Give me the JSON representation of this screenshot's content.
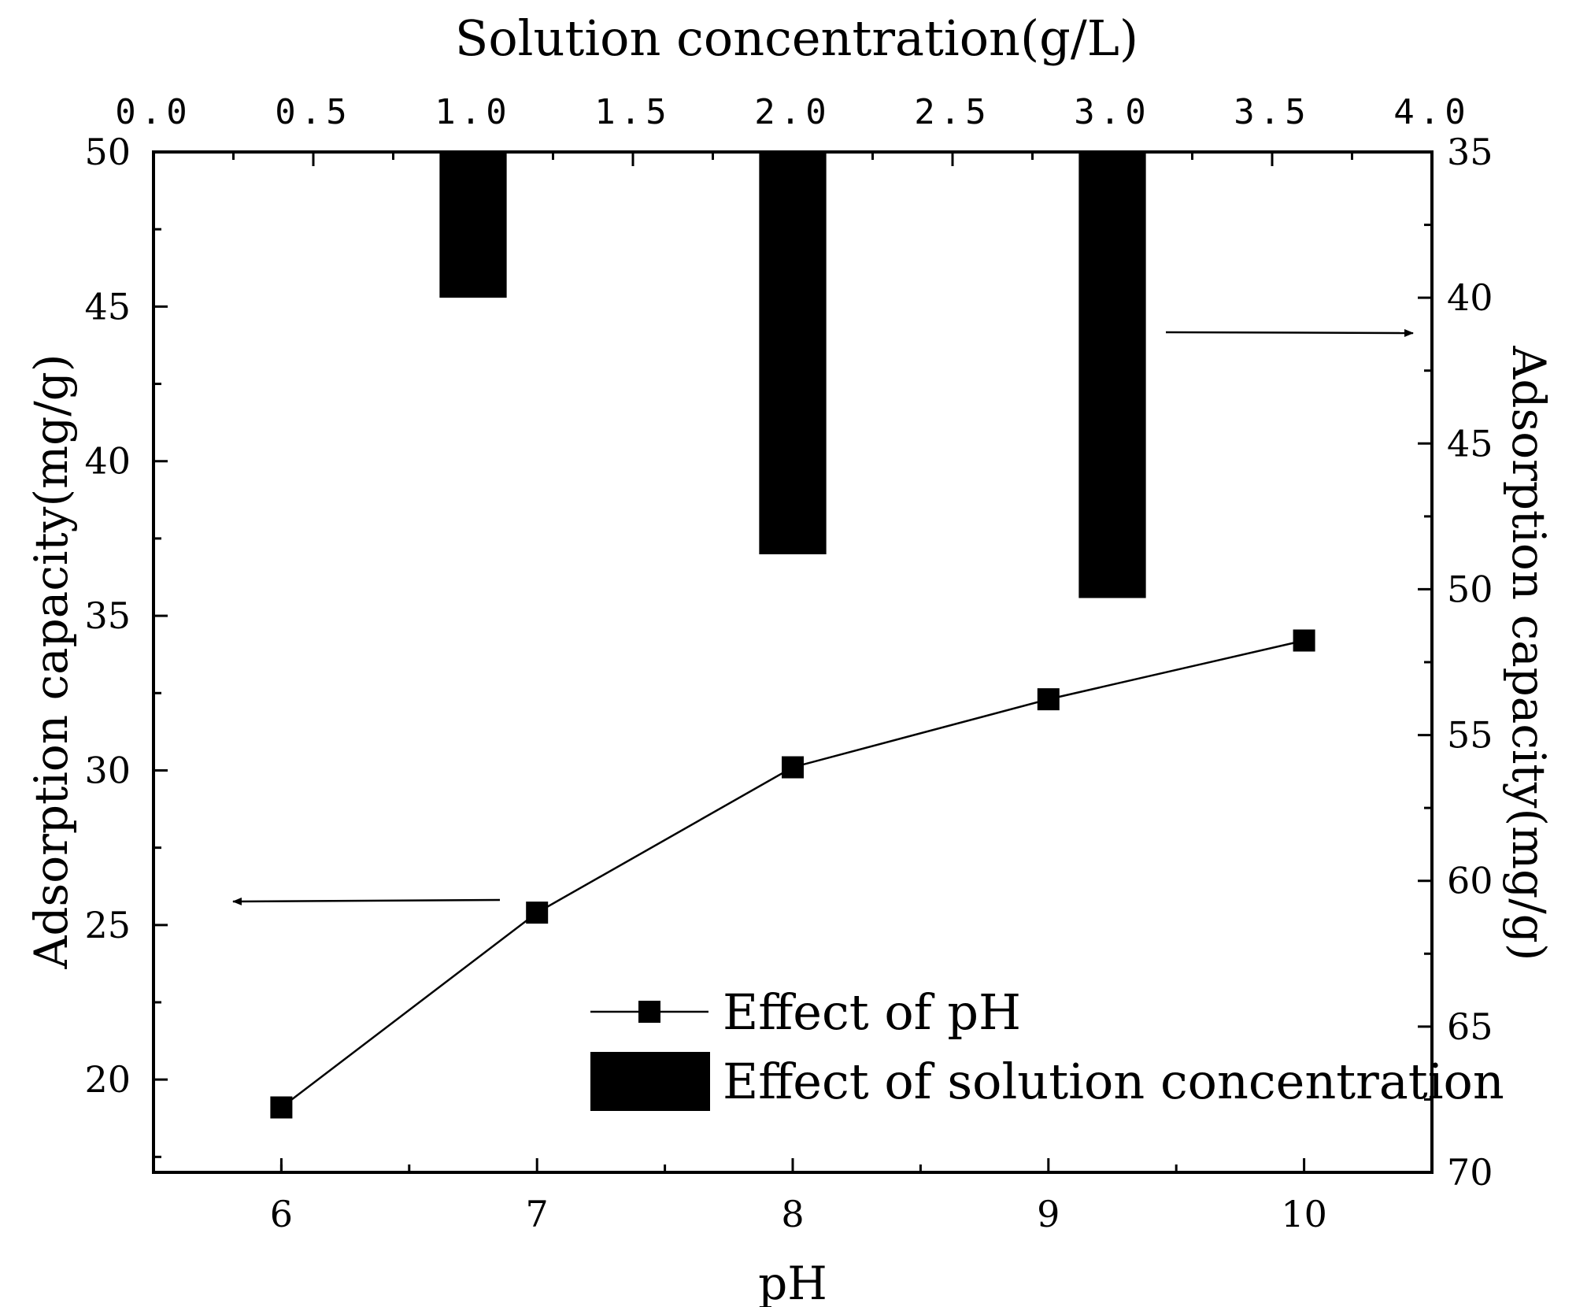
{
  "chart_data": {
    "type": "bar+line",
    "title": "Solution concentration(g/L)",
    "top_axis": {
      "label": "Solution concentration(g/L)",
      "range": [
        0.0,
        4.0
      ],
      "ticks": [
        "0.0",
        "0.5",
        "1.0",
        "1.5",
        "2.0",
        "2.5",
        "3.0",
        "3.5",
        "4.0"
      ]
    },
    "bottom_axis": {
      "label": "pH",
      "range": [
        5.5,
        10.5
      ],
      "ticks": [
        "6",
        "7",
        "8",
        "9",
        "10"
      ]
    },
    "left_axis": {
      "label": "Adsorption capacity(mg/g)",
      "range": [
        17.0,
        50.0
      ],
      "ticks": [
        "20",
        "25",
        "30",
        "35",
        "40",
        "45",
        "50"
      ]
    },
    "right_axis": {
      "label": "Adsorption capacity(mg/g)",
      "range": [
        35,
        70
      ],
      "inverted": true,
      "ticks": [
        "35",
        "40",
        "45",
        "50",
        "55",
        "60",
        "65",
        "70"
      ]
    },
    "series": [
      {
        "name": "Effect of pH",
        "kind": "line",
        "marker": "square",
        "axis": "bottom-left",
        "x": [
          6,
          7,
          8,
          9,
          10
        ],
        "y": [
          19.1,
          25.4,
          30.1,
          32.3,
          34.2
        ]
      },
      {
        "name": "Effect of solution concentration",
        "kind": "bar",
        "axis": "top-right",
        "x": [
          1.0,
          2.0,
          3.0
        ],
        "y": [
          40.0,
          48.8,
          50.3
        ]
      }
    ],
    "annotations": [
      {
        "type": "arrow",
        "points_to": "left-axis",
        "for_series": "Effect of pH"
      },
      {
        "type": "arrow",
        "points_to": "right-axis",
        "for_series": "Effect of solution concentration"
      }
    ],
    "legend": {
      "placement": "lower-right",
      "entries": [
        "Effect of pH",
        "Effect of solution concentration"
      ]
    },
    "grid": false
  }
}
